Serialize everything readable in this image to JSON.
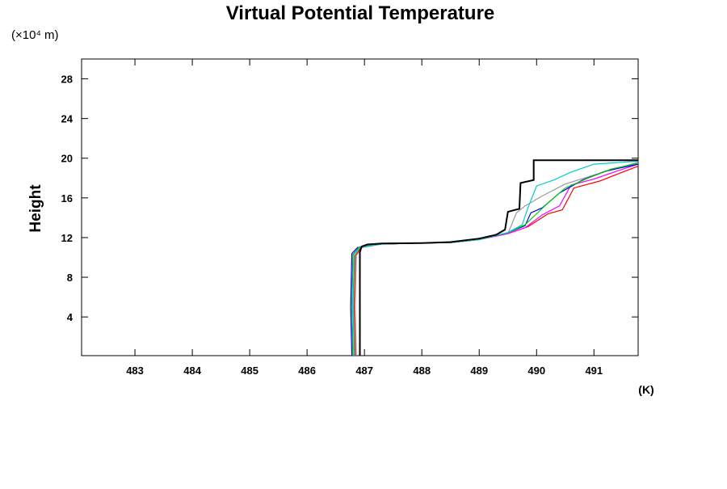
{
  "chart_data": {
    "type": "line",
    "title": "Virtual Potential Temperature",
    "y_unit": "(×10⁴ m)",
    "ylabel": "Height",
    "x_unit": "(K)",
    "xlim": [
      482.07,
      491.77
    ],
    "ylim": [
      0.1,
      30
    ],
    "xticks": [
      483,
      484,
      485,
      486,
      487,
      488,
      489,
      490,
      491
    ],
    "yticks": [
      4,
      8,
      12,
      16,
      20,
      24,
      28
    ],
    "series": [
      {
        "color": "#000000",
        "x": [
          486.92,
          486.92,
          486.95,
          487.05,
          487.3,
          488.0,
          488.5,
          489.0,
          489.3,
          489.45,
          489.5,
          489.7,
          489.72,
          489.95,
          489.95,
          491.77
        ],
        "values": [
          0.1,
          10.5,
          11.1,
          11.3,
          11.4,
          11.45,
          11.55,
          11.9,
          12.3,
          12.8,
          14.6,
          14.9,
          17.5,
          17.8,
          19.8,
          19.8
        ]
      },
      {
        "color": "#00cccc",
        "x": [
          486.82,
          486.8,
          486.82,
          486.92,
          487.3,
          488.0,
          488.5,
          489.0,
          489.5,
          489.75,
          489.85,
          490.0,
          490.3,
          490.6,
          491.0,
          491.77
        ],
        "values": [
          0.1,
          5,
          10.3,
          11.0,
          11.35,
          11.45,
          11.5,
          11.8,
          12.5,
          13.3,
          15.0,
          17.2,
          17.8,
          18.6,
          19.4,
          19.7
        ]
      },
      {
        "color": "#00cc00",
        "x": [
          486.8,
          486.78,
          486.8,
          486.9,
          487.3,
          488.0,
          488.5,
          489.0,
          489.5,
          489.8,
          490.0,
          490.2,
          490.5,
          490.9,
          491.3,
          491.77
        ],
        "values": [
          0.1,
          5,
          10.3,
          11.0,
          11.35,
          11.45,
          11.5,
          11.8,
          12.5,
          13.3,
          14.4,
          15.5,
          17.0,
          18.0,
          18.9,
          19.5
        ]
      },
      {
        "color": "#0000ff",
        "x": [
          486.78,
          486.76,
          486.78,
          486.88,
          487.3,
          488.0,
          488.5,
          489.0,
          489.5,
          489.8,
          489.9,
          490.1,
          490.4,
          490.8,
          491.2,
          491.77
        ],
        "values": [
          0.1,
          5,
          10.4,
          11.0,
          11.35,
          11.45,
          11.5,
          11.8,
          12.5,
          13.2,
          14.5,
          15.0,
          16.5,
          17.8,
          18.7,
          19.4
        ]
      },
      {
        "color": "#ff00ff",
        "x": [
          486.8,
          486.78,
          486.8,
          486.9,
          487.3,
          488.0,
          488.5,
          489.0,
          489.5,
          489.8,
          490.1,
          490.4,
          490.6,
          491.0,
          491.4,
          491.77
        ],
        "values": [
          0.1,
          5,
          10.3,
          11.0,
          11.35,
          11.45,
          11.5,
          11.8,
          12.4,
          13.0,
          14.3,
          15.2,
          17.3,
          17.9,
          18.7,
          19.4
        ]
      },
      {
        "color": "#ff0000",
        "x": [
          486.84,
          486.82,
          486.84,
          486.94,
          487.3,
          488.0,
          488.5,
          489.0,
          489.5,
          489.85,
          490.2,
          490.45,
          490.65,
          491.1,
          491.5,
          491.77
        ],
        "values": [
          0.1,
          5,
          10.2,
          11.0,
          11.35,
          11.45,
          11.5,
          11.8,
          12.4,
          13.1,
          14.4,
          14.8,
          17.0,
          17.7,
          18.6,
          19.2
        ]
      },
      {
        "color": "#999999",
        "x": [
          486.86,
          486.84,
          486.86,
          486.96,
          487.3,
          488.0,
          488.5,
          489.0,
          489.5,
          489.65,
          489.8,
          490.1,
          490.5,
          491.0,
          491.77
        ],
        "values": [
          0.1,
          5,
          10.2,
          11.0,
          11.35,
          11.45,
          11.5,
          11.8,
          12.4,
          14.5,
          15.2,
          16.2,
          17.4,
          18.3,
          19.6
        ]
      }
    ]
  }
}
